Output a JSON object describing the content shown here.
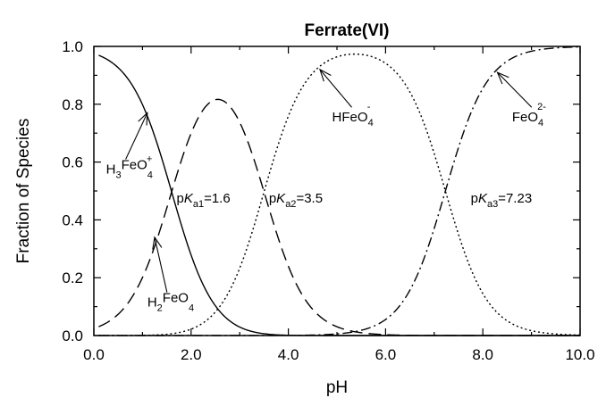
{
  "chart_data": {
    "type": "line",
    "title": "Ferrate(VI)",
    "xlabel": "pH",
    "ylabel": "Fraction of Species",
    "xlim": [
      0,
      10
    ],
    "ylim": [
      0,
      1
    ],
    "xticks": [
      "0.0",
      "2.0",
      "4.0",
      "6.0",
      "8.0",
      "10.0"
    ],
    "yticks": [
      "0.0",
      "0.2",
      "0.4",
      "0.6",
      "0.8",
      "1.0"
    ],
    "grid": false,
    "pKa": [
      1.6,
      3.5,
      7.23
    ],
    "series": [
      {
        "name": "H3FeO4+",
        "style": "solid"
      },
      {
        "name": "H2FeO4",
        "style": "dashed"
      },
      {
        "name": "HFeO4-",
        "style": "dotted"
      },
      {
        "name": "FeO42-",
        "style": "dash-dot"
      }
    ],
    "annotations": [
      {
        "id": "h3",
        "base": "H",
        "sub1": "3",
        "mid": "FeO",
        "sub2": "4",
        "sup": "+",
        "point": [
          1.1,
          0.77
        ],
        "label_at": [
          0.25,
          0.56
        ]
      },
      {
        "id": "h2",
        "base": "H",
        "sub1": "2",
        "mid": "FeO",
        "sub2": "4",
        "sup": "",
        "point": [
          1.25,
          0.34
        ],
        "label_at": [
          1.1,
          0.1
        ]
      },
      {
        "id": "h1",
        "base": "HFeO",
        "sub1": "",
        "mid": "",
        "sub2": "4",
        "sup": "-",
        "point": [
          4.65,
          0.92
        ],
        "label_at": [
          4.9,
          0.74
        ]
      },
      {
        "id": "f0",
        "base": "FeO",
        "sub1": "",
        "mid": "",
        "sub2": "4",
        "sup": "2-",
        "point": [
          8.3,
          0.91
        ],
        "label_at": [
          8.6,
          0.74
        ]
      }
    ],
    "pka_labels": [
      {
        "id": "pka1",
        "p": "p",
        "k": "K",
        "sub": "a1",
        "value": "=1.6",
        "at": [
          1.7,
          0.46
        ]
      },
      {
        "id": "pka2",
        "p": "p",
        "k": "K",
        "sub": "a2",
        "value": "=3.5",
        "at": [
          3.6,
          0.46
        ]
      },
      {
        "id": "pka3",
        "p": "p",
        "k": "K",
        "sub": "a3",
        "value": "=7.23",
        "at": [
          7.75,
          0.46
        ]
      }
    ]
  }
}
